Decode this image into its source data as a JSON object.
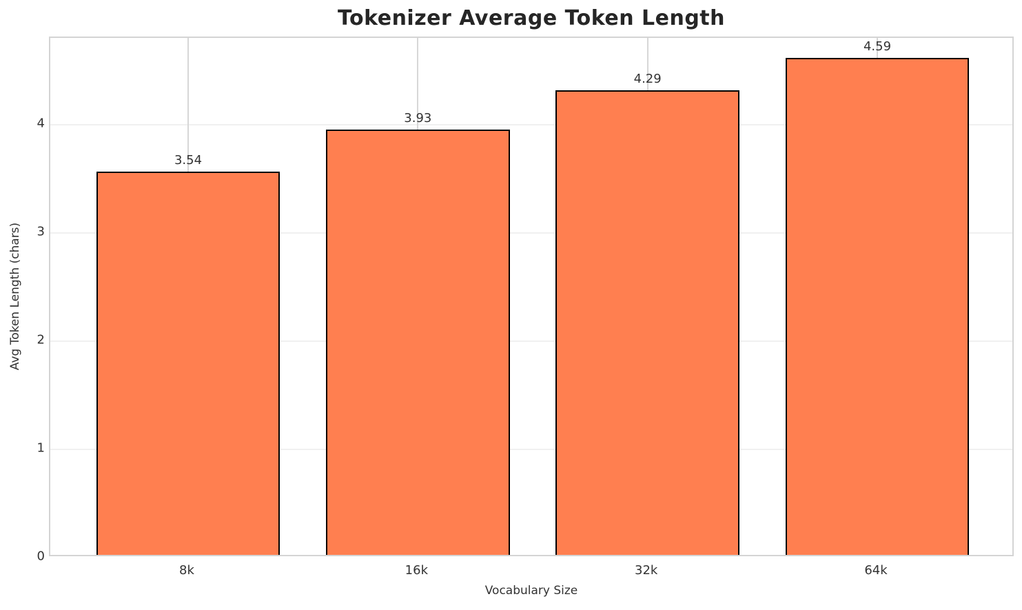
{
  "chart_data": {
    "type": "bar",
    "title": "Tokenizer Average Token Length",
    "xlabel": "Vocabulary Size",
    "ylabel": "Avg Token Length (chars)",
    "categories": [
      "8k",
      "16k",
      "32k",
      "64k"
    ],
    "values": [
      3.54,
      3.93,
      4.29,
      4.59
    ],
    "value_labels": [
      "3.54",
      "3.93",
      "4.29",
      "4.59"
    ],
    "yticks": [
      0,
      1,
      2,
      3,
      4
    ],
    "ylim": [
      0,
      4.8
    ],
    "bar_color": "#FF7F50",
    "bar_edge_color": "#000000",
    "grid": "on",
    "legend": "none"
  }
}
